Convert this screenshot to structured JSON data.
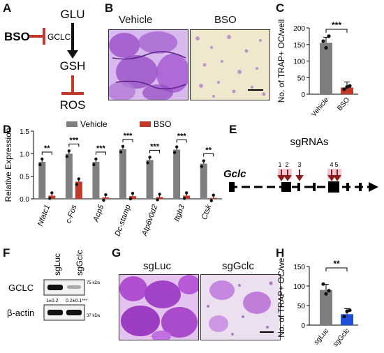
{
  "panels": {
    "A": "A",
    "B": "B",
    "C": "C",
    "D": "D",
    "E": "E",
    "F": "F",
    "G": "G",
    "H": "H"
  },
  "panelA": {
    "glu": "GLU",
    "gsh": "GSH",
    "ros": "ROS",
    "bso": "BSO",
    "gclc": "GCLC",
    "colors": {
      "inhibit": "#c0392b",
      "arrow": "#111111"
    }
  },
  "panelB": {
    "vehicle": "Vehicle",
    "bso": "BSO"
  },
  "panelC": {
    "ylabel": "No. of TRAP+ OC/well",
    "sig": "***",
    "chart_data": {
      "type": "bar",
      "categories": [
        "Vehicle",
        "BSO"
      ],
      "values": [
        155,
        20
      ],
      "points": [
        [
          160,
          140,
          175
        ],
        [
          15,
          22,
          25
        ]
      ],
      "ylim": [
        0,
        200
      ],
      "yticks": [
        0,
        50,
        100,
        150,
        200
      ],
      "colors": [
        "#7f7f7f",
        "#c0392b"
      ],
      "ylabel": "No. of TRAP+ OC/well"
    }
  },
  "panelD": {
    "ylabel": "Relative Expression",
    "legend": [
      "Vehicle",
      "BSO"
    ],
    "chart_data": {
      "type": "bar",
      "categories": [
        "Nfatc1",
        "c-Fos",
        "Acp5",
        "Dc-stamp",
        "Atp6v0d2",
        "Itgb3",
        "Ctsk"
      ],
      "series": [
        {
          "name": "Vehicle",
          "values": [
            0.82,
            1.0,
            0.82,
            1.1,
            0.86,
            1.09,
            0.78
          ]
        },
        {
          "name": "BSO",
          "values": [
            0.07,
            0.38,
            0.03,
            0.06,
            0.04,
            0.07,
            0.02
          ]
        }
      ],
      "ylim": [
        0,
        1.5
      ],
      "yticks": [
        0.0,
        0.5,
        1.0,
        1.5
      ],
      "colors": [
        "#7f7f7f",
        "#c0392b"
      ],
      "sig": [
        "**",
        "***",
        "***",
        "***",
        "***",
        "***",
        "**"
      ]
    }
  },
  "panelE": {
    "gene": "Gclc",
    "title": "sgRNAs",
    "numbers": [
      "1",
      "2",
      "3",
      "4",
      "5"
    ]
  },
  "panelF": {
    "lanes": [
      "sgLuc",
      "sgGclc"
    ],
    "bands": [
      "GCLC",
      "β-actin"
    ],
    "kda1": "75 kDa",
    "kda2": "37 kDa",
    "quant": [
      "1±0.2",
      "0.2±0.1***"
    ]
  },
  "panelG": {
    "left": "sgLuc",
    "right": "sgGclc"
  },
  "panelH": {
    "ylabel": "No. of TRAP+ OC/well",
    "sig": "**",
    "chart_data": {
      "type": "bar",
      "categories": [
        "sgLuc",
        "sgGclc"
      ],
      "values": [
        90,
        28
      ],
      "points": [
        [
          105,
          80,
          88
        ],
        [
          22,
          35,
          38
        ]
      ],
      "ylim": [
        0,
        150
      ],
      "yticks": [
        0,
        50,
        100,
        150
      ],
      "colors": [
        "#7f7f7f",
        "#1f4fd8"
      ],
      "ylabel": "No. of TRAP+ OC/well"
    }
  }
}
